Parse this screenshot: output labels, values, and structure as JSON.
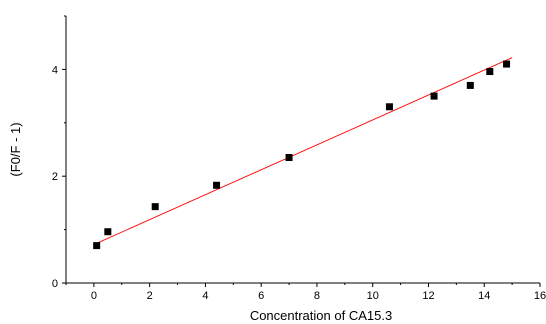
{
  "chart_data": {
    "type": "scatter",
    "xlabel": "Concentration of CA15.3",
    "ylabel": "(F0/F - 1)",
    "xlim": [
      -1,
      16
    ],
    "ylim": [
      0,
      5
    ],
    "xticks": [
      0,
      2,
      4,
      6,
      8,
      10,
      12,
      14,
      16
    ],
    "yticks": [
      0,
      2,
      4
    ],
    "series": [
      {
        "marker": "square",
        "color": "#000000",
        "points": [
          {
            "x": 0.1,
            "y": 0.7
          },
          {
            "x": 0.5,
            "y": 0.96
          },
          {
            "x": 2.2,
            "y": 1.43
          },
          {
            "x": 4.4,
            "y": 1.83
          },
          {
            "x": 7.0,
            "y": 2.35
          },
          {
            "x": 10.6,
            "y": 3.3
          },
          {
            "x": 12.2,
            "y": 3.5
          },
          {
            "x": 13.5,
            "y": 3.7
          },
          {
            "x": 14.2,
            "y": 3.96
          },
          {
            "x": 14.8,
            "y": 4.1
          }
        ]
      }
    ],
    "fit_line": {
      "color": "#ff0000",
      "points": [
        {
          "x": 0,
          "y": 0.72
        },
        {
          "x": 15,
          "y": 4.22
        }
      ]
    },
    "grid": false
  }
}
